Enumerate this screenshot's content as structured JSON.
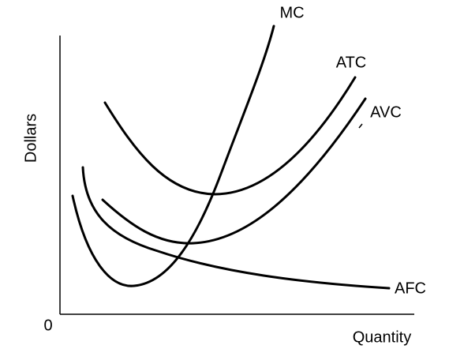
{
  "axes": {
    "y_label": "Dollars",
    "x_label": "Quantity",
    "origin": "0"
  },
  "curves": [
    {
      "label": "MC"
    },
    {
      "label": "ATC"
    },
    {
      "label": "AVC"
    },
    {
      "label": "AFC"
    }
  ]
}
